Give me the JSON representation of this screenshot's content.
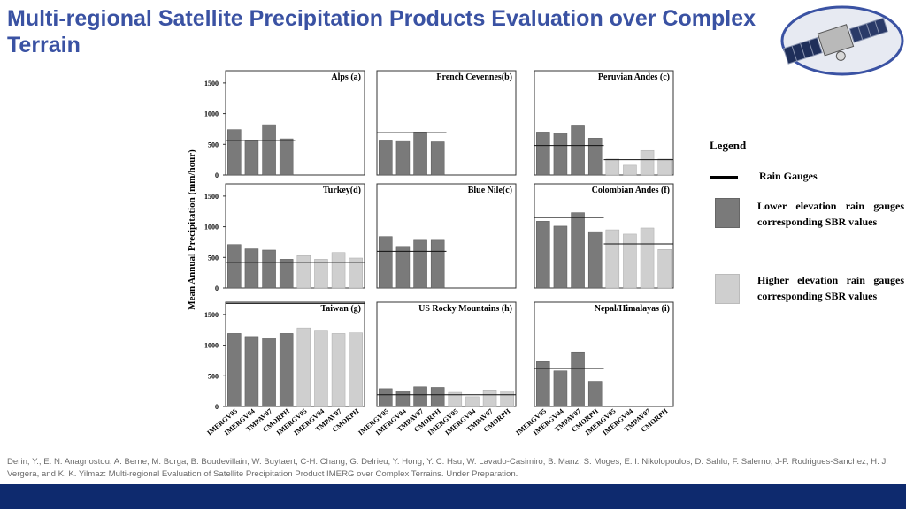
{
  "slide": {
    "title": "Multi-regional Satellite Precipitation Products Evaluation over Complex Terrain",
    "citation": "Derin, Y., E. N. Anagnostou, A. Berne, M. Borga, B. Boudevillain, W. Buytaert, C-H. Chang, G. Delrieu, Y. Hong, Y. C. Hsu, W. Lavado-Casimiro, B. Manz, S. Moges, E. I. Nikolopoulos, D. Sahlu, F. Salerno, J-P. Rodrigues-Sanchez, H. J. Vergera, and K. K. Yilmaz: Multi-regional Evaluation of Satellite Precipitation Product IMERG over Complex Terrains. Under Preparation."
  },
  "legend": {
    "title": "Legend",
    "rain_gauges": "Rain Gauges",
    "lower": "Lower elevation rain gauges corresponding SBR values",
    "higher": "Higher elevation rain gauges corresponding SBR values"
  },
  "colors": {
    "title": "#3a52a3",
    "lower_bar": "#7a7a7a",
    "higher_bar": "#cfcfcf",
    "footer": "#0e2a6e"
  },
  "chart_data": {
    "type": "bar",
    "ylabel": "Mean Annual Precipitation (mm/hour)",
    "ylim": [
      0,
      1700
    ],
    "yticks": [
      0,
      500,
      1000,
      1500
    ],
    "categories": [
      "IMERGV05",
      "IMERGV04",
      "TMPAV07",
      "CMORPH",
      "IMERGV05",
      "IMERGV04",
      "TMPAV07",
      "CMORPH"
    ],
    "panels": [
      {
        "title": "Alps  (a)",
        "lower": [
          740,
          570,
          820,
          590
        ],
        "higher": [
          null,
          null,
          null,
          null
        ],
        "gauge_lower": 560,
        "gauge_higher": null
      },
      {
        "title": "French Cevennes(b)",
        "lower": [
          570,
          560,
          700,
          540
        ],
        "higher": [
          null,
          null,
          null,
          null
        ],
        "gauge_lower": 690,
        "gauge_higher": null
      },
      {
        "title": "Peruvian Andes (c)",
        "lower": [
          700,
          680,
          800,
          600
        ],
        "higher": [
          260,
          160,
          400,
          260
        ],
        "gauge_lower": 480,
        "gauge_higher": 250
      },
      {
        "title": "Turkey(d)",
        "lower": [
          710,
          640,
          620,
          470
        ],
        "higher": [
          530,
          470,
          580,
          490
        ],
        "gauge_lower": 420,
        "gauge_higher": 420
      },
      {
        "title": "Blue Nile(c)",
        "lower": [
          840,
          680,
          780,
          780
        ],
        "higher": [
          null,
          null,
          null,
          null
        ],
        "gauge_lower": 600,
        "gauge_higher": null
      },
      {
        "title": "Colombian Andes (f)",
        "lower": [
          1090,
          1010,
          1230,
          920
        ],
        "higher": [
          950,
          880,
          980,
          630
        ],
        "gauge_lower": 1150,
        "gauge_higher": 720
      },
      {
        "title": "Taiwan (g)",
        "lower": [
          1190,
          1140,
          1120,
          1190
        ],
        "higher": [
          1280,
          1230,
          1190,
          1200
        ],
        "gauge_lower": 1680,
        "gauge_higher": 1680
      },
      {
        "title": "US Rocky Mountains (h)",
        "lower": [
          290,
          250,
          320,
          310
        ],
        "higher": [
          230,
          160,
          270,
          250
        ],
        "gauge_lower": 190,
        "gauge_higher": 190
      },
      {
        "title": "Nepal/Himalayas  (i)",
        "lower": [
          730,
          580,
          890,
          410
        ],
        "higher": [
          null,
          null,
          null,
          null
        ],
        "gauge_lower": 620,
        "gauge_higher": null
      }
    ]
  }
}
